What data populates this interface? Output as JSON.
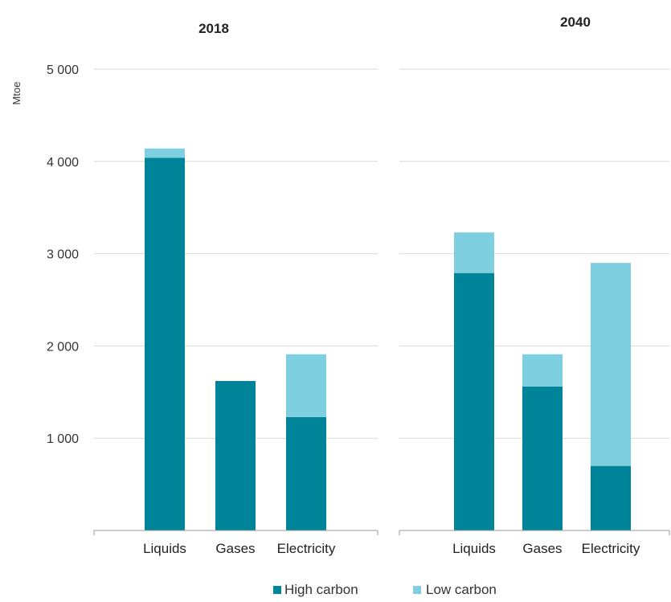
{
  "chart_data": {
    "type": "bar",
    "stacked": true,
    "ylabel": "Mtoe",
    "ylim": [
      0,
      5000
    ],
    "yticks": [
      1000,
      2000,
      3000,
      4000,
      5000
    ],
    "ytick_labels": [
      "1 000",
      "2 000",
      "3 000",
      "4 000",
      "5 000"
    ],
    "grid": true,
    "legend_position": "bottom",
    "colors": {
      "high_carbon": "#00849a",
      "low_carbon": "#7ed0e0"
    },
    "panels": [
      {
        "title": "2018",
        "categories": [
          "Liquids",
          "Gases",
          "Electricity"
        ],
        "series": [
          {
            "name": "High carbon",
            "values": [
              4040,
              1620,
              1230
            ]
          },
          {
            "name": "Low carbon",
            "values": [
              100,
              0,
              680
            ]
          }
        ]
      },
      {
        "title": "2040",
        "categories": [
          "Liquids",
          "Gases",
          "Electricity"
        ],
        "series": [
          {
            "name": "High carbon",
            "values": [
              2790,
              1560,
              700
            ]
          },
          {
            "name": "Low carbon",
            "values": [
              440,
              350,
              2200
            ]
          }
        ]
      }
    ],
    "legend": [
      "High carbon",
      "Low carbon"
    ]
  }
}
